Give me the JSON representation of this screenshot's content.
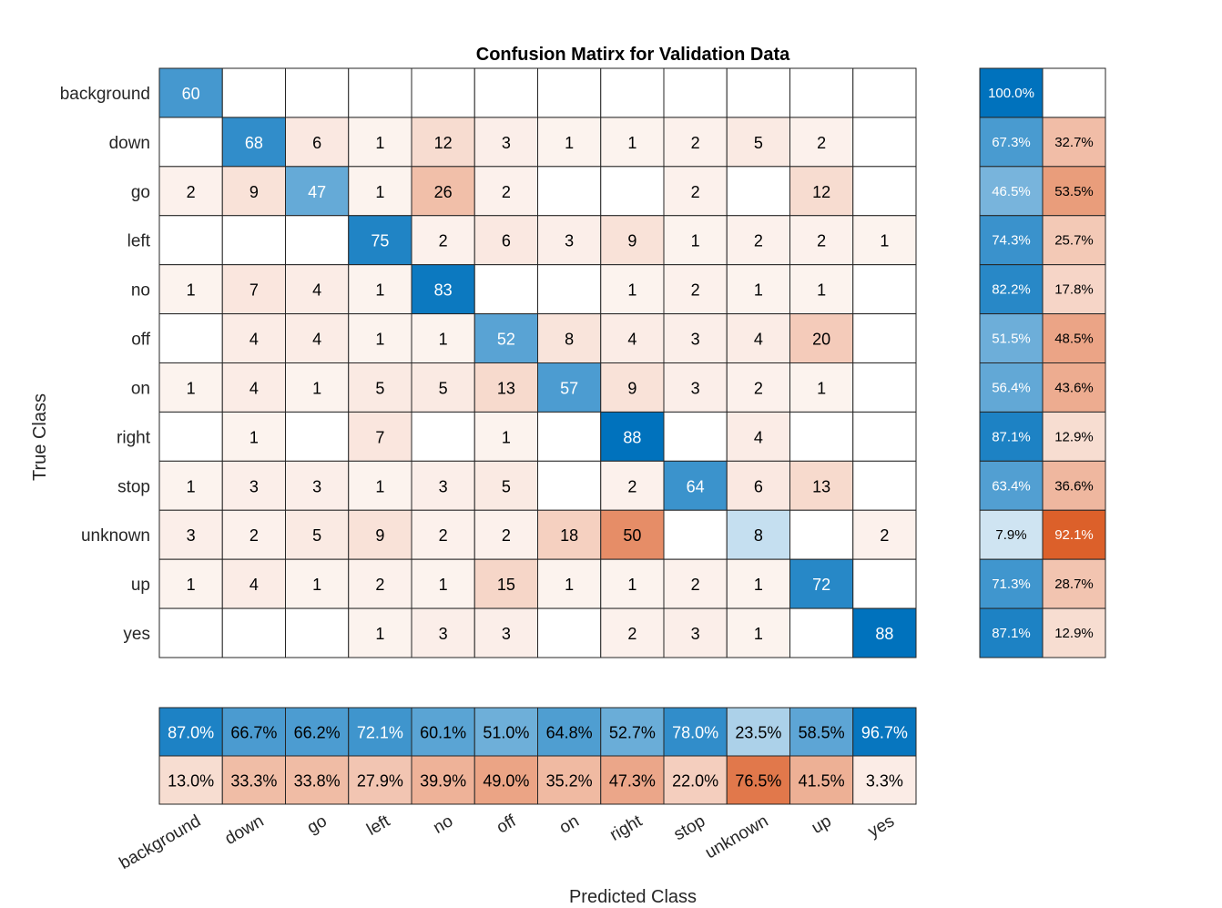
{
  "chart_data": {
    "type": "heatmap",
    "title": "Confusion Matirx for Validation Data",
    "xlabel": "Predicted Class",
    "ylabel": "True Class",
    "classes": [
      "background",
      "down",
      "go",
      "left",
      "no",
      "off",
      "on",
      "right",
      "stop",
      "unknown",
      "up",
      "yes"
    ],
    "matrix": [
      [
        60,
        0,
        0,
        0,
        0,
        0,
        0,
        0,
        0,
        0,
        0,
        0
      ],
      [
        0,
        68,
        6,
        1,
        12,
        3,
        1,
        1,
        2,
        5,
        2,
        0
      ],
      [
        2,
        9,
        47,
        1,
        26,
        2,
        0,
        0,
        2,
        0,
        12,
        0
      ],
      [
        0,
        0,
        0,
        75,
        2,
        6,
        3,
        9,
        1,
        2,
        2,
        1
      ],
      [
        1,
        7,
        4,
        1,
        83,
        0,
        0,
        1,
        2,
        1,
        1,
        0
      ],
      [
        0,
        4,
        4,
        1,
        1,
        52,
        8,
        4,
        3,
        4,
        20,
        0
      ],
      [
        1,
        4,
        1,
        5,
        5,
        13,
        57,
        9,
        3,
        2,
        1,
        0
      ],
      [
        0,
        1,
        0,
        7,
        0,
        1,
        0,
        88,
        0,
        4,
        0,
        0
      ],
      [
        1,
        3,
        3,
        1,
        3,
        5,
        0,
        2,
        64,
        6,
        13,
        0
      ],
      [
        3,
        2,
        5,
        9,
        2,
        2,
        18,
        50,
        0,
        8,
        0,
        2
      ],
      [
        1,
        4,
        1,
        2,
        1,
        15,
        1,
        1,
        2,
        1,
        72,
        0
      ],
      [
        0,
        0,
        0,
        1,
        3,
        3,
        0,
        2,
        3,
        1,
        0,
        88
      ]
    ],
    "row_summary": {
      "correct": [
        "100.0%",
        "67.3%",
        "46.5%",
        "74.3%",
        "82.2%",
        "51.5%",
        "56.4%",
        "87.1%",
        "63.4%",
        "7.9%",
        "71.3%",
        "87.1%"
      ],
      "incorrect": [
        "",
        "32.7%",
        "53.5%",
        "25.7%",
        "17.8%",
        "48.5%",
        "43.6%",
        "12.9%",
        "36.6%",
        "92.1%",
        "28.7%",
        "12.9%"
      ]
    },
    "column_summary": {
      "correct": [
        "87.0%",
        "66.7%",
        "66.2%",
        "72.1%",
        "60.1%",
        "51.0%",
        "64.8%",
        "52.7%",
        "78.0%",
        "23.5%",
        "58.5%",
        "96.7%"
      ],
      "incorrect": [
        "13.0%",
        "33.3%",
        "33.8%",
        "27.9%",
        "39.9%",
        "49.0%",
        "35.2%",
        "47.3%",
        "22.0%",
        "76.5%",
        "41.5%",
        "3.3%"
      ]
    },
    "colors": {
      "correct": "#0072bd",
      "incorrect": "#d95319",
      "grid": "#262626",
      "text_dark": "#000000",
      "text_light": "#ffffff",
      "background": "#ffffff"
    }
  }
}
